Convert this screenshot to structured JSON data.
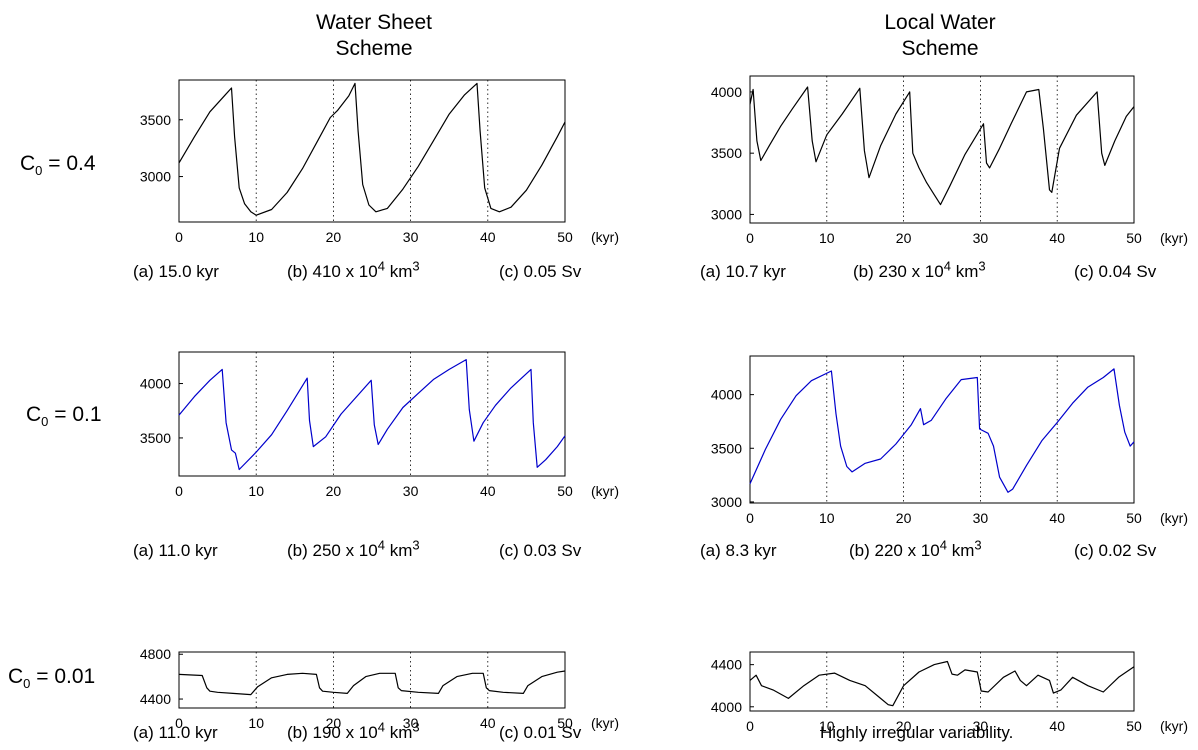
{
  "columns": [
    {
      "title_line1": "Water Sheet",
      "title_line2": "Scheme"
    },
    {
      "title_line1": "Local Water",
      "title_line2": "Scheme"
    }
  ],
  "rows": [
    {
      "label_pre": "C",
      "label_sub": "0",
      "label_post": " = 0.4"
    },
    {
      "label_pre": "C",
      "label_sub": "0",
      "label_post": " = 0.1"
    },
    {
      "label_pre": "C",
      "label_sub": "0",
      "label_post": " = 0.01"
    }
  ],
  "stats": [
    {
      "a": "(a)  15.0 kyr",
      "b_pre": "(b)  410 x 10",
      "b_exp": "4",
      "b_post": " km",
      "b_unit_exp": "3",
      "c": "(c)  0.05 Sv"
    },
    {
      "a": "(a)  10.7 kyr",
      "b_pre": "(b)  230 x 10",
      "b_exp": "4",
      "b_post": " km",
      "b_unit_exp": "3",
      "c": "(c)  0.04 Sv"
    },
    {
      "a": "(a)  11.0 kyr",
      "b_pre": "(b)  250 x 10",
      "b_exp": "4",
      "b_post": " km",
      "b_unit_exp": "3",
      "c": "(c)  0.03 Sv"
    },
    {
      "a": "(a)  8.3 kyr",
      "b_pre": "(b)  220 x 10",
      "b_exp": "4",
      "b_post": " km",
      "b_unit_exp": "3",
      "c": "(c)  0.02 Sv"
    },
    {
      "a": "(a)  11.0 kyr",
      "b_pre": "(b)  190 x 10",
      "b_exp": "4",
      "b_post": " km",
      "b_unit_exp": "3",
      "c": "(c)  0.01 Sv"
    }
  ],
  "note": "Highly irregular variability.",
  "chart_data": [
    {
      "type": "line",
      "panel": "water-sheet-c04",
      "color": "#000000",
      "xlim": [
        0,
        50
      ],
      "ylim": [
        2600,
        3850
      ],
      "yticks": [
        3000,
        3500
      ],
      "xticks": [
        0,
        10,
        20,
        30,
        40,
        50
      ],
      "xunit": "(kyr)",
      "x": [
        0,
        2,
        4,
        6,
        6.8,
        7.2,
        7.8,
        8.5,
        9.3,
        10,
        12,
        14,
        16,
        18,
        19.6,
        20.5,
        22,
        22.8,
        23.2,
        23.8,
        24.6,
        25.5,
        27,
        29,
        31,
        33,
        35,
        37,
        38.6,
        39,
        39.6,
        40.4,
        41.5,
        43,
        45,
        47,
        49,
        50
      ],
      "y": [
        3120,
        3350,
        3570,
        3720,
        3780,
        3350,
        2900,
        2760,
        2690,
        2660,
        2710,
        2860,
        3070,
        3320,
        3520,
        3580,
        3710,
        3820,
        3400,
        2930,
        2750,
        2690,
        2720,
        2890,
        3090,
        3320,
        3550,
        3720,
        3820,
        3400,
        2900,
        2720,
        2690,
        2730,
        2880,
        3100,
        3350,
        3480
      ]
    },
    {
      "type": "line",
      "panel": "local-water-c04",
      "color": "#000000",
      "xlim": [
        0,
        50
      ],
      "ylim": [
        2930,
        4130
      ],
      "yticks": [
        3000,
        3500,
        4000
      ],
      "xticks": [
        0,
        10,
        20,
        30,
        40,
        50
      ],
      "xunit": "(kyr)",
      "x": [
        0,
        0.4,
        0.9,
        1.4,
        2.5,
        4,
        5.5,
        7.5,
        8.1,
        8.6,
        10,
        12,
        14.3,
        14.9,
        15.5,
        17,
        19,
        20.8,
        21.2,
        22,
        23,
        24,
        24.8,
        26,
        28,
        30.4,
        30.8,
        31.2,
        32.5,
        34,
        36,
        37.6,
        38.2,
        39,
        39.3,
        40.3,
        42.5,
        45.2,
        45.8,
        46.2,
        47.5,
        49,
        50
      ],
      "y": [
        3900,
        4020,
        3600,
        3440,
        3560,
        3720,
        3860,
        4040,
        3600,
        3430,
        3650,
        3820,
        4030,
        3520,
        3300,
        3560,
        3820,
        4000,
        3500,
        3380,
        3260,
        3160,
        3080,
        3230,
        3490,
        3740,
        3420,
        3380,
        3540,
        3740,
        4000,
        4020,
        3700,
        3200,
        3180,
        3540,
        3810,
        4000,
        3500,
        3400,
        3600,
        3800,
        3880
      ]
    },
    {
      "type": "line",
      "panel": "water-sheet-c01",
      "color": "#0000cc",
      "xlim": [
        0,
        50
      ],
      "ylim": [
        3150,
        4290
      ],
      "yticks": [
        3500,
        4000
      ],
      "xticks": [
        0,
        10,
        20,
        30,
        40,
        50
      ],
      "xunit": "(kyr)",
      "x": [
        0,
        2,
        4,
        5.6,
        6.1,
        6.8,
        7.3,
        7.8,
        8.5,
        10,
        12,
        14,
        16.6,
        16.9,
        17.4,
        19,
        21,
        24.9,
        25.3,
        25.8,
        27,
        29,
        31,
        33,
        35,
        37.2,
        37.6,
        38.2,
        39.4,
        41,
        43,
        45.6,
        45.9,
        46.4,
        47.5,
        49,
        50
      ],
      "y": [
        3710,
        3880,
        4030,
        4130,
        3640,
        3390,
        3360,
        3210,
        3260,
        3370,
        3530,
        3750,
        4050,
        3660,
        3420,
        3510,
        3720,
        4030,
        3620,
        3440,
        3580,
        3780,
        3910,
        4040,
        4130,
        4220,
        3760,
        3470,
        3640,
        3800,
        3960,
        4130,
        3640,
        3230,
        3300,
        3420,
        3520
      ]
    },
    {
      "type": "line",
      "panel": "local-water-c01",
      "color": "#0000cc",
      "xlim": [
        0,
        50
      ],
      "ylim": [
        2990,
        4360
      ],
      "yticks": [
        3000,
        3500,
        4000
      ],
      "xticks": [
        0,
        10,
        20,
        30,
        40,
        50
      ],
      "xunit": "(kyr)",
      "x": [
        0,
        2,
        4,
        6,
        8,
        10.6,
        11.2,
        11.8,
        12.6,
        13.3,
        15,
        17,
        19,
        21,
        22.2,
        22.6,
        23.6,
        25.5,
        27.5,
        29.6,
        29.9,
        31,
        31.7,
        32.5,
        33.6,
        34.2,
        36,
        38,
        40,
        42,
        44,
        46,
        47.4,
        48.1,
        48.8,
        49.5,
        50
      ],
      "y": [
        3170,
        3490,
        3770,
        3990,
        4130,
        4220,
        3820,
        3520,
        3330,
        3280,
        3360,
        3400,
        3540,
        3720,
        3870,
        3720,
        3760,
        3960,
        4140,
        4160,
        3680,
        3640,
        3520,
        3230,
        3090,
        3120,
        3340,
        3570,
        3740,
        3920,
        4070,
        4160,
        4240,
        3900,
        3650,
        3520,
        3560
      ]
    },
    {
      "type": "line",
      "panel": "water-sheet-c001",
      "color": "#000000",
      "xlim": [
        0,
        50
      ],
      "ylim": [
        4320,
        4820
      ],
      "yticks": [
        4400,
        4800
      ],
      "xticks": [
        0,
        10,
        20,
        30,
        40,
        50
      ],
      "xunit": "(kyr)",
      "x": [
        0,
        3,
        3.6,
        4,
        5,
        7,
        9.3,
        10.2,
        12,
        14,
        16,
        17.8,
        18.2,
        18.6,
        20,
        21.8,
        22.6,
        24.2,
        26,
        28,
        28.4,
        28.8,
        31,
        33.6,
        34.2,
        36,
        38,
        39.4,
        39.8,
        40.2,
        42,
        44.6,
        45.2,
        47,
        49,
        50
      ],
      "y": [
        4620,
        4610,
        4500,
        4470,
        4460,
        4450,
        4440,
        4510,
        4590,
        4620,
        4630,
        4620,
        4500,
        4470,
        4460,
        4450,
        4520,
        4600,
        4630,
        4630,
        4500,
        4475,
        4460,
        4450,
        4520,
        4600,
        4630,
        4630,
        4500,
        4475,
        4460,
        4450,
        4520,
        4600,
        4640,
        4650
      ]
    },
    {
      "type": "line",
      "panel": "local-water-c001",
      "color": "#000000",
      "xlim": [
        0,
        50
      ],
      "ylim": [
        3960,
        4520
      ],
      "yticks": [
        4000,
        4400
      ],
      "xticks": [
        0,
        10,
        20,
        30,
        40,
        50
      ],
      "xunit": "(kyr)",
      "x": [
        0,
        0.8,
        1.5,
        3,
        5,
        7,
        9,
        11,
        13,
        15,
        17,
        18,
        18.6,
        20,
        22,
        24,
        25.7,
        26.3,
        27,
        28,
        29.6,
        30.1,
        31,
        33,
        34.5,
        35.2,
        36,
        37.5,
        39,
        39.5,
        40.5,
        42,
        44,
        46,
        48,
        50
      ],
      "y": [
        4250,
        4300,
        4200,
        4160,
        4080,
        4200,
        4300,
        4320,
        4250,
        4200,
        4080,
        4020,
        4010,
        4200,
        4330,
        4400,
        4430,
        4310,
        4300,
        4350,
        4330,
        4150,
        4140,
        4280,
        4340,
        4250,
        4200,
        4300,
        4250,
        4130,
        4160,
        4280,
        4200,
        4140,
        4280,
        4380
      ]
    }
  ]
}
